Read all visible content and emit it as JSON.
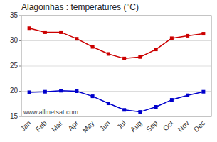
{
  "chart_data": {
    "type": "line",
    "title": "Alagoinhas : temperatures (°C)",
    "categories": [
      "Jan",
      "Feb",
      "Mar",
      "Apr",
      "May",
      "Jun",
      "Jul",
      "Aug",
      "Sep",
      "Oct",
      "Nov",
      "Dec"
    ],
    "series": [
      {
        "color": "#cc0000",
        "values": [
          32.5,
          31.7,
          31.7,
          30.4,
          28.8,
          27.4,
          26.5,
          26.8,
          28.3,
          30.5,
          31.0,
          31.4
        ]
      },
      {
        "color": "#0000cc",
        "values": [
          19.8,
          19.9,
          20.1,
          20.0,
          19.0,
          17.6,
          16.3,
          15.9,
          16.9,
          18.3,
          19.2,
          19.9
        ]
      }
    ],
    "marker": "square",
    "ylim": [
      15,
      35
    ],
    "yticks": [
      15,
      20,
      25,
      30,
      35
    ],
    "grid": true,
    "annotations": [
      "www.allmetsat.com"
    ]
  }
}
